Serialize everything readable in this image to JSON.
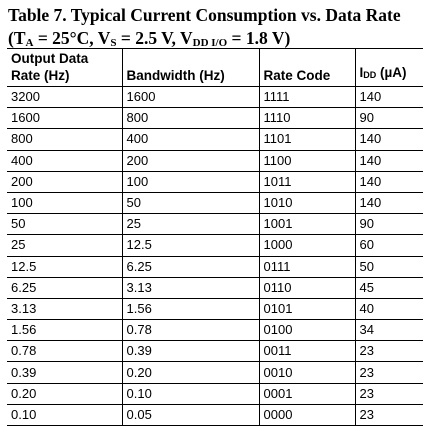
{
  "caption": {
    "line1": "Table 7. Typical Current Consumption vs. Data Rate",
    "line2_prefix": "(T",
    "line2_sub1": "A",
    "line2_mid1": " = 25°C, V",
    "line2_sub2": "S",
    "line2_mid2": " = 2.5 V, V",
    "line2_sub3": "DD I/O",
    "line2_suffix": " = 1.8 V)"
  },
  "headers": {
    "output_data_rate_line1": "Output Data",
    "output_data_rate_line2": "Rate (Hz)",
    "bandwidth": "Bandwidth (Hz)",
    "rate_code": "Rate Code",
    "idd_prefix": "I",
    "idd_sub": "DD",
    "idd_suffix": " (µA)"
  },
  "rows": [
    [
      "3200",
      "1600",
      "1111",
      "140"
    ],
    [
      "1600",
      "800",
      "1110",
      "90"
    ],
    [
      "800",
      "400",
      "1101",
      "140"
    ],
    [
      "400",
      "200",
      "1100",
      "140"
    ],
    [
      "200",
      "100",
      "1011",
      "140"
    ],
    [
      "100",
      "50",
      "1010",
      "140"
    ],
    [
      "50",
      "25",
      "1001",
      "90"
    ],
    [
      "25",
      "12.5",
      "1000",
      "60"
    ],
    [
      "12.5",
      "6.25",
      "0111",
      "50"
    ],
    [
      "6.25",
      "3.13",
      "0110",
      "45"
    ],
    [
      "3.13",
      "1.56",
      "0101",
      "40"
    ],
    [
      "1.56",
      "0.78",
      "0100",
      "34"
    ],
    [
      "0.78",
      "0.39",
      "0011",
      "23"
    ],
    [
      "0.39",
      "0.20",
      "0010",
      "23"
    ],
    [
      "0.20",
      "0.10",
      "0001",
      "23"
    ],
    [
      "0.10",
      "0.05",
      "0000",
      "23"
    ]
  ]
}
